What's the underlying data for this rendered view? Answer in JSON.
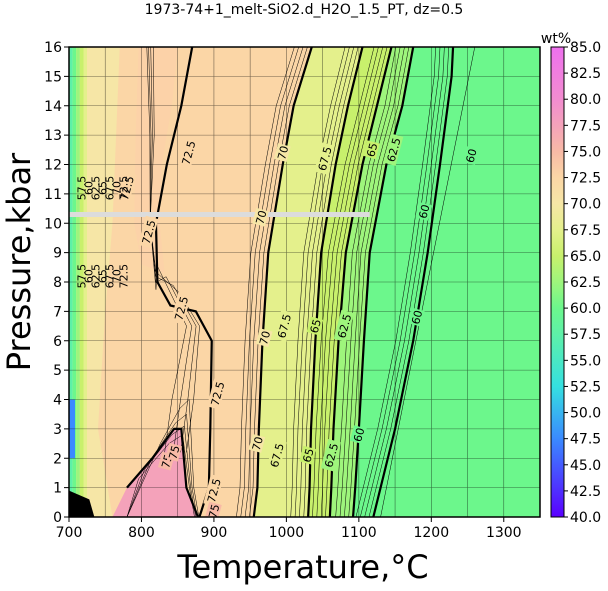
{
  "chart_data": {
    "type": "heatmap",
    "title": "1973-74+1_melt-SiO2.d_H2O_1.5_PT, dz=0.5",
    "xlabel": "Temperature,°C",
    "ylabel": "Pressure,kbar",
    "xlim": [
      700,
      1350
    ],
    "ylim": [
      0,
      16
    ],
    "xticks": [
      700,
      800,
      900,
      1000,
      1100,
      1200,
      1300
    ],
    "yticks": [
      0,
      1,
      2,
      3,
      4,
      5,
      6,
      7,
      8,
      9,
      10,
      11,
      12,
      13,
      14,
      15,
      16
    ],
    "grid": true,
    "colorbar": {
      "unit_label": "wt%",
      "min": 40.0,
      "max": 85.0,
      "ticks": [
        "85.0",
        "82.5",
        "80.0",
        "77.5",
        "75.0",
        "72.5",
        "70.0",
        "67.5",
        "65.0",
        "62.5",
        "60.0",
        "57.5",
        "55.0",
        "52.5",
        "50.0",
        "47.5",
        "45.0",
        "42.5",
        "40.0"
      ],
      "color_stops": [
        {
          "value": 40.0,
          "color": "#5a00ff"
        },
        {
          "value": 47.5,
          "color": "#3a8aff"
        },
        {
          "value": 52.5,
          "color": "#35e0e0"
        },
        {
          "value": 57.5,
          "color": "#5ef0a8"
        },
        {
          "value": 60.0,
          "color": "#6cf78c"
        },
        {
          "value": 62.5,
          "color": "#9ef57c"
        },
        {
          "value": 65.0,
          "color": "#c8f06c"
        },
        {
          "value": 67.5,
          "color": "#e4f08c"
        },
        {
          "value": 70.0,
          "color": "#f6e6a6"
        },
        {
          "value": 72.5,
          "color": "#fbd6a6"
        },
        {
          "value": 75.0,
          "color": "#f8baa6"
        },
        {
          "value": 77.5,
          "color": "#f4a2ba"
        },
        {
          "value": 80.0,
          "color": "#f28cd0"
        },
        {
          "value": 85.0,
          "color": "#ee70ee"
        }
      ]
    },
    "bold_contours": [
      {
        "level": 60.0,
        "label": "60",
        "points": [
          [
            1120,
            0
          ],
          [
            1150,
            3
          ],
          [
            1175,
            6
          ],
          [
            1195,
            9
          ],
          [
            1212,
            12
          ],
          [
            1228,
            15
          ],
          [
            1230,
            16
          ]
        ],
        "labels_at": [
          [
            1100,
            2.8
          ],
          [
            1180,
            6.8
          ],
          [
            1190,
            10.4
          ],
          [
            1255,
            12.3
          ]
        ]
      },
      {
        "level": 62.5,
        "label": "62.5",
        "points": [
          [
            1092,
            0
          ],
          [
            1095,
            1
          ],
          [
            1100,
            3
          ],
          [
            1107,
            6
          ],
          [
            1115,
            9
          ],
          [
            1138,
            12
          ],
          [
            1160,
            14
          ],
          [
            1175,
            16
          ]
        ],
        "labels_at": [
          [
            1062,
            2.1
          ],
          [
            1080,
            6.5
          ],
          [
            1148,
            12.5
          ]
        ]
      },
      {
        "level": 65.0,
        "label": "65",
        "points": [
          [
            1060,
            0
          ],
          [
            1062,
            1
          ],
          [
            1065,
            3
          ],
          [
            1072,
            6
          ],
          [
            1082,
            9
          ],
          [
            1105,
            12
          ],
          [
            1130,
            14.5
          ],
          [
            1145,
            16
          ]
        ],
        "labels_at": [
          [
            1030,
            2.1
          ],
          [
            1040,
            6.5
          ],
          [
            1118,
            12.5
          ]
        ]
      },
      {
        "level": 67.5,
        "label": "67.5",
        "points": [
          [
            1030,
            0
          ],
          [
            1032,
            1
          ],
          [
            1034,
            3
          ],
          [
            1040,
            6
          ],
          [
            1048,
            9
          ],
          [
            1068,
            12
          ],
          [
            1085,
            14
          ],
          [
            1105,
            16
          ]
        ],
        "labels_at": [
          [
            987,
            2.1
          ],
          [
            997,
            6.5
          ],
          [
            1053,
            12.2
          ]
        ]
      },
      {
        "level": 70.0,
        "label": "70",
        "points": [
          [
            955,
            0
          ],
          [
            960,
            1
          ],
          [
            962,
            3
          ],
          [
            967,
            6
          ],
          [
            975,
            9
          ],
          [
            995,
            12
          ],
          [
            1010,
            14
          ],
          [
            1035,
            16
          ]
        ],
        "labels_at": [
          [
            960,
            2.5
          ],
          [
            970,
            6.1
          ],
          [
            965,
            10.2
          ],
          [
            995,
            12.4
          ]
        ]
      },
      {
        "level": 72.5,
        "label": "72.5",
        "points": [
          [
            880,
            0
          ],
          [
            893,
            1
          ],
          [
            895,
            3
          ],
          [
            897,
            6
          ],
          [
            875,
            7
          ],
          [
            840,
            7.2
          ],
          [
            822,
            8
          ],
          [
            820,
            10
          ],
          [
            835,
            12
          ],
          [
            855,
            14
          ],
          [
            870,
            16
          ]
        ],
        "labels_at": [
          [
            900,
            0.9
          ],
          [
            905,
            4.2
          ],
          [
            855,
            7.1
          ],
          [
            810,
            9.7
          ],
          [
            865,
            12.4
          ],
          [
            780,
            11.2
          ]
        ]
      },
      {
        "level": 75.0,
        "label": "75",
        "points": [
          [
            878,
            0
          ],
          [
            862,
            1
          ],
          [
            855,
            3
          ],
          [
            845,
            3
          ],
          [
            815,
            2
          ],
          [
            780,
            1
          ]
        ],
        "labels_at": [
          [
            835,
            1.9
          ],
          [
            845,
            2.2
          ],
          [
            900,
            0.2
          ]
        ]
      }
    ],
    "contour_labels_left": [
      "57.5",
      "60",
      "62.5",
      "65",
      "67.5",
      "70",
      "72.5"
    ],
    "annotation_band": {
      "pressure": 10.3,
      "t_start": 700,
      "t_end": 1115,
      "color": "#dcdcdc"
    }
  }
}
